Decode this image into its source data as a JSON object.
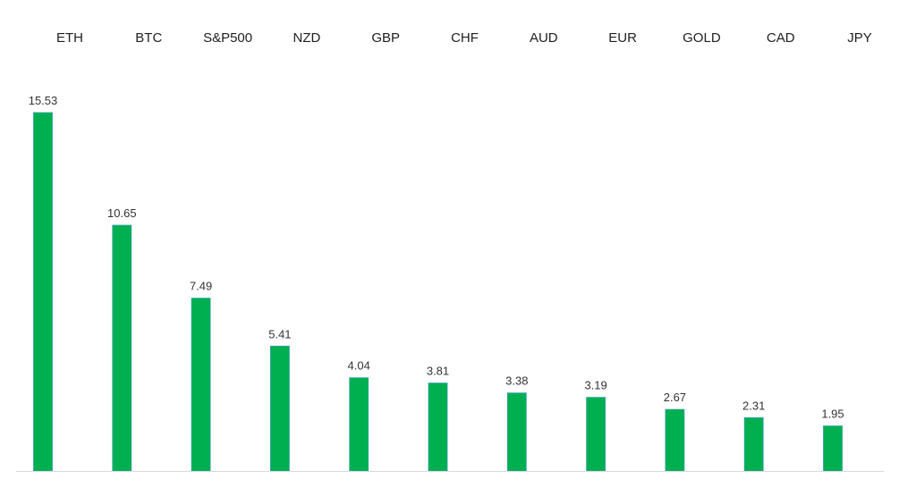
{
  "chart_data": {
    "type": "bar",
    "title": "",
    "xlabel": "",
    "ylabel": "",
    "categories": [
      "ETH",
      "BTC",
      "S&P500",
      "NZD",
      "GBP",
      "CHF",
      "AUD",
      "EUR",
      "GOLD",
      "CAD",
      "JPY"
    ],
    "values": [
      15.53,
      10.65,
      7.49,
      5.41,
      4.04,
      3.81,
      3.38,
      3.19,
      2.67,
      2.31,
      1.95
    ],
    "value_labels": [
      "15.53",
      "10.65",
      "7.49",
      "5.41",
      "4.04",
      "3.81",
      "3.38",
      "3.19",
      "2.67",
      "2.31",
      "1.95"
    ],
    "ylim": [
      0,
      15.53
    ],
    "grid": false,
    "legend": "none",
    "category_label_position": "top",
    "colors": {
      "bar_fill": "#00b050",
      "bar_edge": "#2e9fa8",
      "baseline": "#d9d9d9",
      "label_text": "#1f1f1f",
      "value_text": "#333333"
    }
  }
}
